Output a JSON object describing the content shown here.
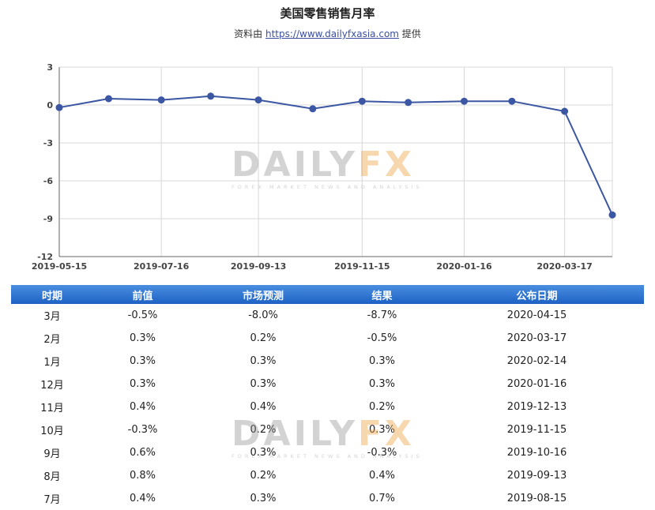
{
  "title": "美国零售销售月率",
  "source": {
    "prefix": "资料由 ",
    "link": "https://www.dailyfxasia.com",
    "suffix": " 提供"
  },
  "watermark": {
    "daily": "DAILY",
    "fx": "FX",
    "tagline": "FOREX MARKET NEWS AND ANALYSIS"
  },
  "chart_data": {
    "type": "line",
    "title": "美国零售销售月率",
    "xlabel": "",
    "ylabel": "",
    "x": [
      "2019-05-15",
      "2019-06-14",
      "2019-07-16",
      "2019-08-15",
      "2019-09-13",
      "2019-10-16",
      "2019-11-15",
      "2019-12-13",
      "2020-01-16",
      "2020-02-14",
      "2020-03-17",
      "2020-04-15"
    ],
    "values": [
      -0.2,
      0.5,
      0.4,
      0.7,
      0.4,
      -0.3,
      0.3,
      0.2,
      0.3,
      0.3,
      -0.5,
      -8.7
    ],
    "x_tick_labels": [
      "2019-05-15",
      "2019-07-16",
      "2019-09-13",
      "2019-11-15",
      "2020-01-16",
      "2020-03-17"
    ],
    "y_ticks": [
      3,
      0,
      -3,
      -6,
      -9,
      -12
    ],
    "ylim": [
      -12,
      3
    ],
    "grid": true,
    "line_color": "#3b56a2"
  },
  "table": {
    "headers": [
      "时期",
      "前值",
      "市场预测",
      "结果",
      "公布日期"
    ],
    "rows": [
      [
        "3月",
        "-0.5%",
        "-8.0%",
        "-8.7%",
        "2020-04-15"
      ],
      [
        "2月",
        "0.3%",
        "0.2%",
        "-0.5%",
        "2020-03-17"
      ],
      [
        "1月",
        "0.3%",
        "0.3%",
        "0.3%",
        "2020-02-14"
      ],
      [
        "12月",
        "0.3%",
        "0.3%",
        "0.3%",
        "2020-01-16"
      ],
      [
        "11月",
        "0.4%",
        "0.4%",
        "0.2%",
        "2019-12-13"
      ],
      [
        "10月",
        "-0.3%",
        "0.2%",
        "0.3%",
        "2019-11-15"
      ],
      [
        "9月",
        "0.6%",
        "0.3%",
        "-0.3%",
        "2019-10-16"
      ],
      [
        "8月",
        "0.8%",
        "0.2%",
        "0.4%",
        "2019-09-13"
      ],
      [
        "7月",
        "0.4%",
        "0.3%",
        "0.7%",
        "2019-08-15"
      ]
    ]
  }
}
